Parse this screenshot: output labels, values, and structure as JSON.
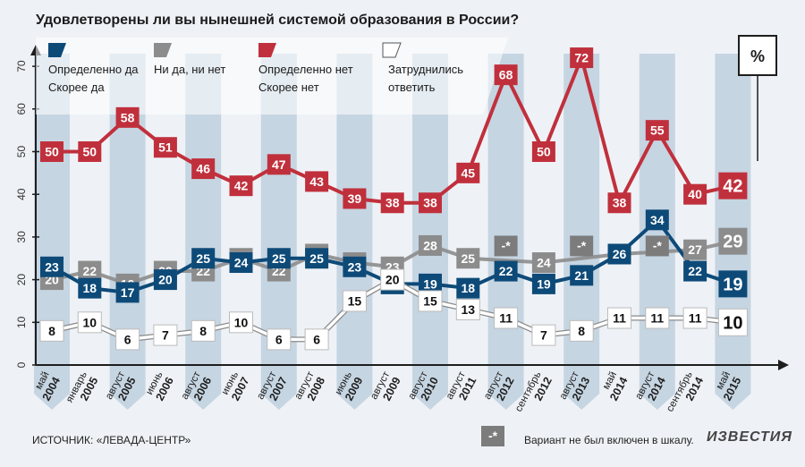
{
  "title": "Удовлетворены ли вы нынешней системой образования в России?",
  "source": "ИСТОЧНИК: «ЛЕВАДА-ЦЕНТР»",
  "brand": "ИЗВЕСТИЯ",
  "note": {
    "marker": "-*",
    "text": "Вариант не был включен в шкалу."
  },
  "unit_label": "%",
  "colors": {
    "blue": "#0d4a78",
    "gray": "#8c8c8c",
    "red": "#c0303c",
    "white": "#ffffff",
    "band": "#c6d5e2",
    "axis": "#1e1e1e"
  },
  "chart_data": {
    "type": "line",
    "title": "Удовлетворены ли вы нынешней системой образования в России?",
    "ylim": [
      0,
      70
    ],
    "yticks": [
      0,
      10,
      20,
      30,
      40,
      50,
      60,
      70
    ],
    "categories": [
      [
        "май",
        "2004"
      ],
      [
        "январь",
        "2005"
      ],
      [
        "август",
        "2005"
      ],
      [
        "июнь",
        "2006"
      ],
      [
        "август",
        "2006"
      ],
      [
        "июнь",
        "2007"
      ],
      [
        "август",
        "2007"
      ],
      [
        "август",
        "2008"
      ],
      [
        "июнь",
        "2009"
      ],
      [
        "август",
        "2009"
      ],
      [
        "август",
        "2010"
      ],
      [
        "август",
        "2011"
      ],
      [
        "август",
        "2012"
      ],
      [
        "сентябрь",
        "2012"
      ],
      [
        "август",
        "2013"
      ],
      [
        "май",
        "2014"
      ],
      [
        "август",
        "2014"
      ],
      [
        "сентябрь",
        "2014"
      ],
      [
        "май",
        "2015"
      ]
    ],
    "series": [
      {
        "name": "Определенно нет / Скорее нет",
        "legend": [
          "Определенно нет",
          "Скорее нет"
        ],
        "color": "red",
        "values": [
          50,
          50,
          58,
          51,
          46,
          42,
          47,
          43,
          39,
          38,
          38,
          45,
          68,
          50,
          72,
          38,
          55,
          40,
          42
        ]
      },
      {
        "name": "Ни да, ни нет",
        "legend": [
          "Ни да, ни нет"
        ],
        "color": "gray",
        "values": [
          20,
          22,
          19,
          22,
          22,
          25,
          22,
          26,
          24,
          23,
          28,
          25,
          null,
          24,
          null,
          26,
          null,
          27,
          29
        ],
        "na_values": [
          12,
          14,
          16
        ]
      },
      {
        "name": "Определенно да / Скорее да",
        "legend": [
          "Определенно да",
          "Скорее да"
        ],
        "color": "blue",
        "values": [
          23,
          18,
          17,
          20,
          25,
          24,
          25,
          25,
          23,
          19,
          19,
          18,
          22,
          19,
          21,
          26,
          34,
          22,
          19
        ]
      },
      {
        "name": "Затруднились ответить",
        "legend": [
          "Затруднились",
          "ответить"
        ],
        "color": "white",
        "values": [
          8,
          10,
          6,
          7,
          8,
          10,
          6,
          6,
          15,
          20,
          15,
          13,
          11,
          7,
          8,
          11,
          11,
          11,
          10
        ]
      }
    ]
  }
}
